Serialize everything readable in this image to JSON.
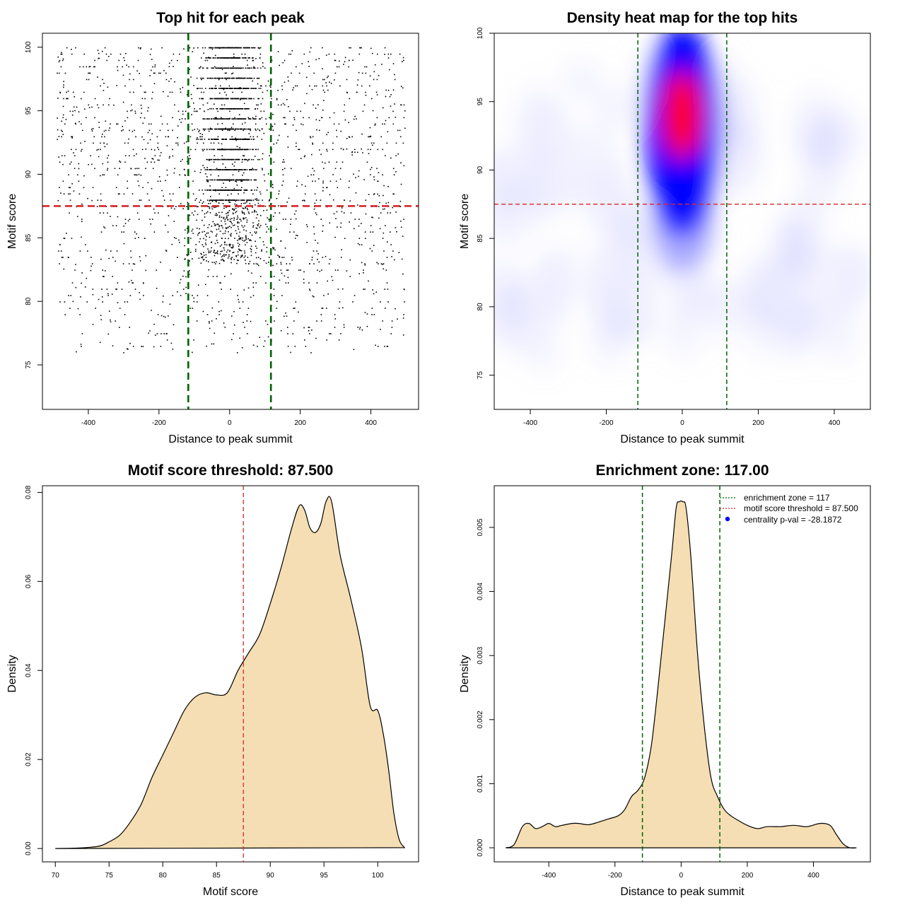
{
  "chart_data": [
    {
      "type": "scatter",
      "title": "Top hit for each peak",
      "xlabel": "Distance to peak summit",
      "ylabel": "Motif score",
      "xlim": [
        -530,
        535
      ],
      "ylim": [
        71.5,
        101.1
      ],
      "xticks": [
        -400,
        -200,
        0,
        200,
        400
      ],
      "yticks": [
        75,
        80,
        85,
        90,
        95,
        100
      ],
      "enrichment_zone": [
        -117,
        117
      ],
      "score_threshold": 87.5,
      "point_count_approx": 3600,
      "score_levels": [
        100.0,
        99.2,
        98.4,
        97.6,
        96.8,
        96.0,
        95.2,
        94.4,
        93.6,
        92.8,
        92.0,
        91.2,
        90.4,
        89.6,
        88.8,
        88.0
      ],
      "colors": {
        "points": "#000000",
        "zone": "#006400",
        "threshold": "#d62728"
      }
    },
    {
      "type": "heatmap",
      "title": "Density heat map for the top hits",
      "xlabel": "Distance to peak summit",
      "ylabel": "Motif score",
      "xlim": [
        -495,
        495
      ],
      "ylim": [
        72.5,
        100
      ],
      "xticks": [
        -400,
        -200,
        0,
        200,
        400
      ],
      "yticks": [
        75,
        80,
        85,
        90,
        95,
        100
      ],
      "enrichment_zone": [
        -117,
        117
      ],
      "score_threshold": 87.5,
      "hotspot": {
        "x": 0,
        "y": 94
      },
      "colors": {
        "low": "#ffffff",
        "mid": "#0000ff",
        "high": "#ff0000",
        "zone": "#006400",
        "threshold": "#d62728"
      }
    },
    {
      "type": "area",
      "title": "Motif score threshold: 87.500",
      "xlabel": "Motif score",
      "ylabel": "Density",
      "xlim": [
        68.8,
        103.8
      ],
      "ylim": [
        -0.003,
        0.0815
      ],
      "xticks": [
        70,
        75,
        80,
        85,
        90,
        95,
        100
      ],
      "yticks": [
        0.0,
        0.02,
        0.04,
        0.06,
        0.08
      ],
      "ytick_labels": [
        "0.00",
        "0.02",
        "0.04",
        "0.06",
        "0.08"
      ],
      "threshold": 87.5,
      "x": [
        70,
        72,
        74,
        75,
        76,
        77,
        78,
        79,
        80,
        81,
        82,
        83,
        84,
        85,
        86,
        87,
        88,
        89,
        90,
        91,
        92,
        92.7,
        93.2,
        93.7,
        94.2,
        94.7,
        95.2,
        95.7,
        96.5,
        97.5,
        98.5,
        99.3,
        100,
        100.5,
        101,
        101.5,
        102,
        102.5
      ],
      "values": [
        0.0,
        0.0001,
        0.0005,
        0.0015,
        0.003,
        0.006,
        0.01,
        0.016,
        0.021,
        0.026,
        0.031,
        0.034,
        0.035,
        0.0345,
        0.035,
        0.04,
        0.044,
        0.048,
        0.055,
        0.063,
        0.072,
        0.077,
        0.076,
        0.072,
        0.071,
        0.073,
        0.078,
        0.078,
        0.066,
        0.056,
        0.045,
        0.032,
        0.031,
        0.026,
        0.018,
        0.008,
        0.002,
        0.0002
      ],
      "colors": {
        "fill": "#f5deb3",
        "line": "#000000",
        "threshold": "#d62728"
      }
    },
    {
      "type": "area",
      "title": "Enrichment zone: 117.00",
      "xlabel": "Distance to peak summit",
      "ylabel": "Density",
      "xlim": [
        -565,
        572
      ],
      "ylim": [
        -0.00022,
        0.00565
      ],
      "xticks": [
        -400,
        -200,
        0,
        200,
        400
      ],
      "yticks": [
        0.0,
        0.001,
        0.002,
        0.003,
        0.004,
        0.005
      ],
      "ytick_labels": [
        "0.000",
        "0.001",
        "0.002",
        "0.003",
        "0.004",
        "0.005"
      ],
      "enrichment_zone": [
        -117,
        117
      ],
      "x": [
        -530,
        -505,
        -480,
        -460,
        -440,
        -420,
        -400,
        -380,
        -360,
        -330,
        -310,
        -280,
        -250,
        -220,
        -190,
        -170,
        -150,
        -130,
        -110,
        -90,
        -70,
        -50,
        -30,
        -15,
        -5,
        5,
        15,
        30,
        50,
        70,
        90,
        110,
        130,
        150,
        175,
        200,
        230,
        260,
        300,
        340,
        380,
        420,
        450,
        470,
        490,
        510,
        530
      ],
      "values": [
        0.0,
        5e-05,
        0.00033,
        0.00038,
        0.0003,
        0.00033,
        0.00038,
        0.00033,
        0.00035,
        0.00038,
        0.00038,
        0.00036,
        0.0004,
        0.00045,
        0.0005,
        0.0006,
        0.0008,
        0.0009,
        0.0011,
        0.0016,
        0.0025,
        0.0035,
        0.0045,
        0.0053,
        0.0054,
        0.0054,
        0.0053,
        0.0045,
        0.003,
        0.0019,
        0.0011,
        0.0008,
        0.0006,
        0.0005,
        0.00042,
        0.00035,
        0.0003,
        0.00033,
        0.00033,
        0.00035,
        0.00033,
        0.00038,
        0.00035,
        0.0002,
        6e-05,
        0.0,
        0.0
      ],
      "colors": {
        "fill": "#f5deb3",
        "line": "#000000",
        "zone": "#006400"
      },
      "legend": {
        "position": "top-right",
        "items": [
          {
            "label": "enrichment zone = 117",
            "color": "#006400",
            "kind": "dotted-line"
          },
          {
            "label": "motif score threshold = 87.500",
            "color": "#d62728",
            "kind": "dotted-line"
          },
          {
            "label": "centrality p-val = -28.1872",
            "color": "#0000ff",
            "kind": "point"
          }
        ]
      }
    }
  ]
}
